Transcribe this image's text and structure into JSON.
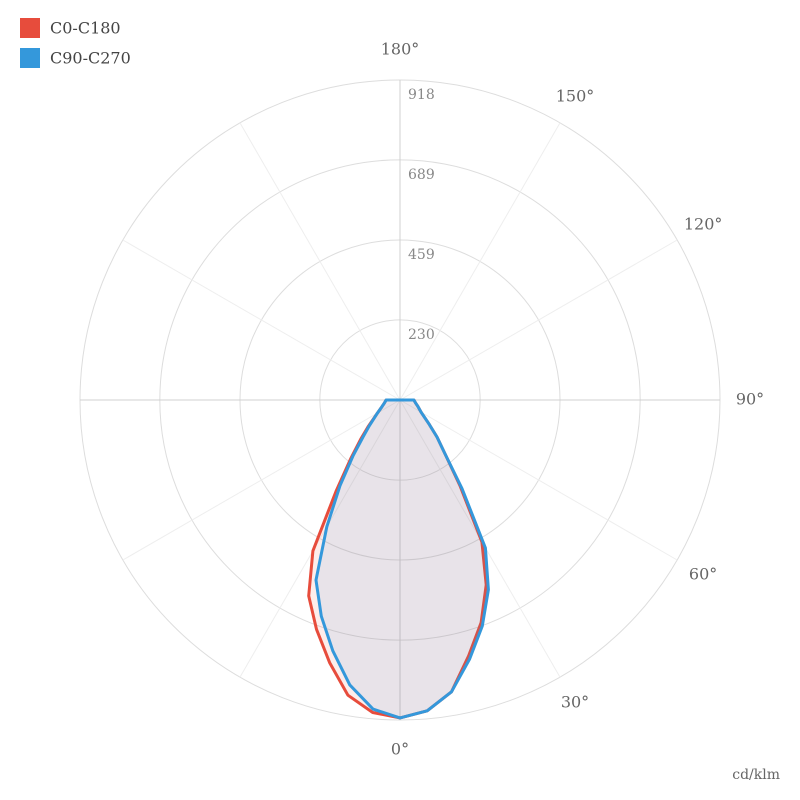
{
  "chart_data": {
    "type": "polar",
    "unit_label": "cd/klm",
    "rlim": [
      0,
      918
    ],
    "rticks": [
      230,
      459,
      689,
      918
    ],
    "angle_ticks": [
      {
        "value": 0,
        "label": "0°"
      },
      {
        "value": 30,
        "label": "30°"
      },
      {
        "value": 60,
        "label": "60°"
      },
      {
        "value": 90,
        "label": "90°"
      },
      {
        "value": 120,
        "label": "120°"
      },
      {
        "value": 150,
        "label": "150°"
      },
      {
        "value": 180,
        "label": "180°"
      }
    ],
    "grid": true,
    "legend": "top-left",
    "angles": [
      -90,
      -80,
      -70,
      -60,
      -50,
      -45,
      -40,
      -35,
      -30,
      -25,
      -20,
      -15,
      -10,
      -5,
      0,
      5,
      10,
      15,
      20,
      25,
      30,
      35,
      40,
      45,
      50,
      60,
      70,
      80,
      90
    ],
    "series": [
      {
        "name": "C0-C180",
        "color": "#e74c3c",
        "values": [
          40,
          45,
          55,
          75,
          120,
          160,
          220,
          320,
          500,
          620,
          700,
          780,
          860,
          900,
          912,
          895,
          850,
          760,
          680,
          585,
          470,
          300,
          200,
          150,
          110,
          70,
          55,
          45,
          40
        ]
      },
      {
        "name": "C90-C270",
        "color": "#3498db",
        "values": [
          40,
          45,
          55,
          75,
          115,
          150,
          210,
          300,
          420,
          570,
          660,
          745,
          830,
          890,
          912,
          895,
          850,
          770,
          690,
          600,
          490,
          310,
          200,
          150,
          110,
          70,
          55,
          45,
          40
        ]
      }
    ]
  }
}
